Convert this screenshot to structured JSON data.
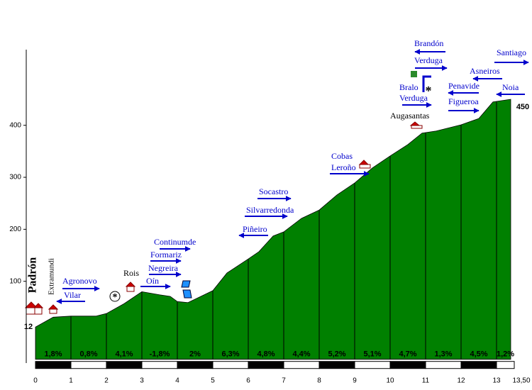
{
  "chart_data": {
    "type": "area",
    "color": "#008000",
    "x": [
      0,
      0.5,
      1,
      1.7,
      2,
      2.5,
      3,
      3.5,
      3.8,
      4,
      4.3,
      5,
      5.4,
      6,
      6.3,
      6.7,
      7,
      7.5,
      8,
      8.5,
      9,
      9.5,
      10,
      10.5,
      10.9,
      11.3,
      12,
      12.5,
      12.9,
      13.4
    ],
    "values": [
      12,
      31,
      33,
      33,
      38,
      57,
      80,
      74,
      71,
      61,
      59,
      82,
      116,
      143,
      157,
      187,
      195,
      221,
      237,
      266,
      289,
      318,
      341,
      363,
      385,
      389,
      401,
      413,
      445,
      450
    ],
    "xlim": [
      0,
      13.5
    ],
    "xticks": [
      0,
      1,
      2,
      3,
      4,
      5,
      6,
      7,
      8,
      9,
      10,
      11,
      12,
      13,
      {
        "value": 13.5,
        "label": "13,50"
      }
    ],
    "ylim": [
      -50,
      550
    ],
    "yticks": [
      100,
      200,
      300,
      400
    ],
    "gradients": {
      "values": [
        1.8,
        0.8,
        4.1,
        -1.8,
        2,
        6.3,
        4.8,
        4.4,
        5.2,
        5.1,
        4.7,
        1.3,
        4.5,
        1.2
      ],
      "value_labels": [
        "1,8%",
        "0,8%",
        "4,1%",
        "-1,8%",
        "2%",
        "6,3%",
        "4,8%",
        "4,4%",
        "5,2%",
        "5,1%",
        "4,7%",
        "1,3%",
        "4,5%",
        "1,2%"
      ]
    },
    "places": [
      {
        "text": "Padrón"
      },
      {
        "text": "Extramundi"
      },
      {
        "text": "Agronovo",
        "arrow": "right"
      },
      {
        "text": "Vilar",
        "arrow": "left"
      },
      {
        "text": "Rois"
      },
      {
        "text": "Oín",
        "arrow": "right"
      },
      {
        "text": "Negreira",
        "arrow": "right"
      },
      {
        "text": "Formariz",
        "arrow": "right"
      },
      {
        "text": "Continumde",
        "arrow": "right"
      },
      {
        "text": "Piñeiro",
        "arrow": "left"
      },
      {
        "text": "Silvarredonda",
        "arrow": "right"
      },
      {
        "text": "Socastro",
        "arrow": "right"
      },
      {
        "text": "Cobas"
      },
      {
        "text": "Leroño",
        "arrow": "right"
      },
      {
        "text": "Augasantas"
      },
      {
        "text": "Bralo"
      },
      {
        "text": "Verduga",
        "arrow": "right"
      },
      {
        "text": "Brandón",
        "arrow": "left"
      },
      {
        "text": "Verduga",
        "arrow": "right"
      },
      {
        "text": "Penavide",
        "arrow": "left"
      },
      {
        "text": "Figueroa",
        "arrow": "right"
      },
      {
        "text": "Asneiros",
        "arrow": "left"
      },
      {
        "text": "Santiago",
        "arrow": "right"
      },
      {
        "text": "Noia",
        "arrow": "left"
      }
    ]
  }
}
